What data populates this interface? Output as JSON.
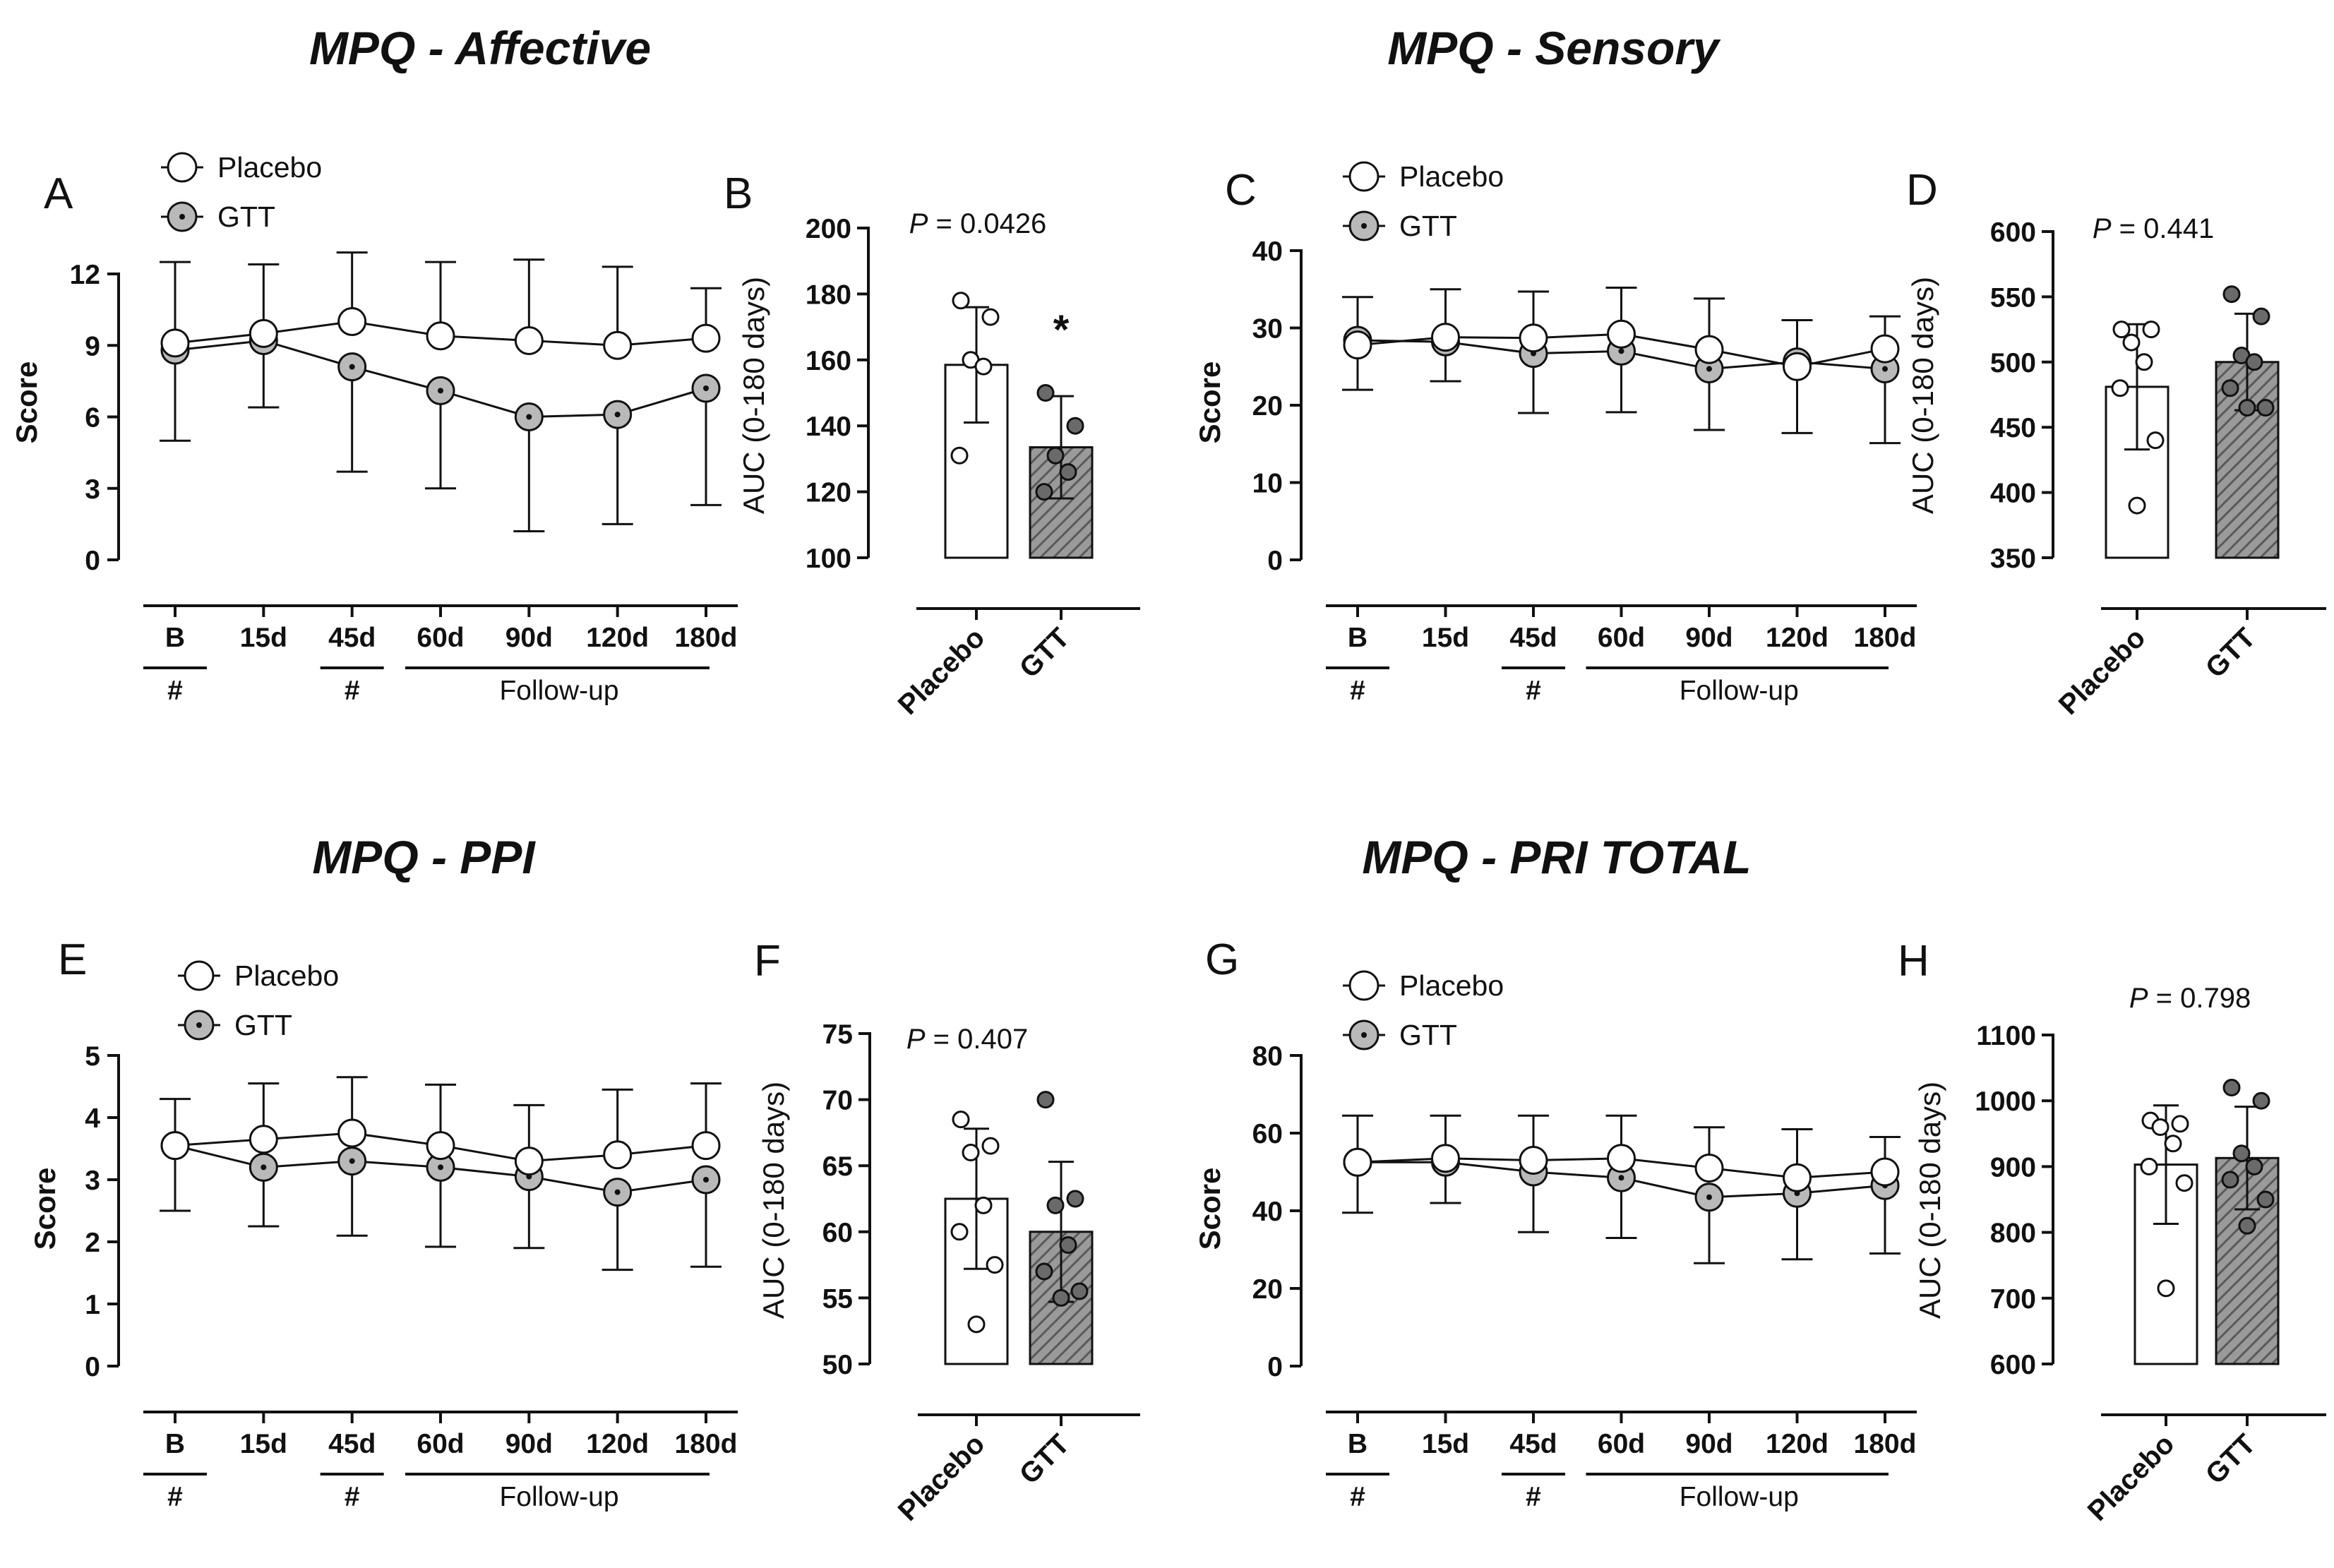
{
  "panel_titles": {
    "affective": "MPQ - Affective",
    "sensory": "MPQ - Sensory",
    "ppi": "MPQ - PPI",
    "pri_total": "MPQ - PRI TOTAL"
  },
  "colors": {
    "placebo_fill": "#ffffff",
    "gtt_fill": "#b9b9b9",
    "gtt_point_dark": "#6a6a6a",
    "hatch": "#6e6e6e",
    "stroke": "#111111"
  },
  "chart_data": [
    {
      "id": "A",
      "letter": "A",
      "type": "line",
      "group": "affective",
      "ylabel": "Score",
      "ylim": [
        0,
        12
      ],
      "yticks": [
        "0",
        "3",
        "6",
        "9",
        "12"
      ],
      "x": [
        "B",
        "15d",
        "45d",
        "60d",
        "90d",
        "120d",
        "180d"
      ],
      "legend": [
        "Placebo",
        "GTT"
      ],
      "annotations": {
        "hash_1": "#",
        "hash_2": "#",
        "follow_up": "Follow-up"
      },
      "series": [
        {
          "name": "Placebo",
          "values": [
            9.1,
            9.5,
            10.0,
            9.4,
            9.2,
            9.0,
            9.3
          ],
          "sd": [
            3.4,
            2.9,
            2.9,
            3.1,
            3.4,
            3.3,
            2.1
          ]
        },
        {
          "name": "GTT",
          "values": [
            8.8,
            9.2,
            8.1,
            7.1,
            6.0,
            6.1,
            7.2
          ],
          "sd": [
            3.8,
            2.8,
            4.4,
            4.1,
            4.8,
            4.6,
            4.9
          ]
        }
      ]
    },
    {
      "id": "B",
      "letter": "B",
      "type": "bar",
      "group": "affective",
      "ylabel": "AUC (0-180 days)",
      "ylim": [
        100,
        200
      ],
      "yticks": [
        "100",
        "120",
        "140",
        "160",
        "180",
        "200"
      ],
      "categories": [
        "Placebo",
        "GTT"
      ],
      "values": [
        158.5,
        133.5
      ],
      "sd": [
        17.5,
        15.5
      ],
      "points": [
        [
          178,
          173,
          160,
          158,
          131
        ],
        [
          150,
          140,
          131,
          126,
          120
        ]
      ],
      "p_label": "P",
      "p_value": "= 0.0426",
      "significance": "*"
    },
    {
      "id": "C",
      "letter": "C",
      "type": "line",
      "group": "sensory",
      "ylabel": "Score",
      "ylim": [
        0,
        40
      ],
      "yticks": [
        "0",
        "10",
        "20",
        "30",
        "40"
      ],
      "x": [
        "B",
        "15d",
        "45d",
        "60d",
        "90d",
        "120d",
        "180d"
      ],
      "legend": [
        "Placebo",
        "GTT"
      ],
      "annotations": {
        "hash_1": "#",
        "hash_2": "#",
        "follow_up": "Follow-up"
      },
      "series": [
        {
          "name": "Placebo",
          "values": [
            27.8,
            28.8,
            28.7,
            29.2,
            27.2,
            25.0,
            27.3
          ],
          "sd": [
            6.2,
            6.2,
            6.0,
            6.0,
            6.6,
            6.0,
            4.2
          ]
        },
        {
          "name": "GTT",
          "values": [
            28.4,
            28.2,
            26.7,
            27.0,
            24.7,
            25.6,
            24.7
          ],
          "sd": [
            6.4,
            5.1,
            7.7,
            7.9,
            7.9,
            9.2,
            9.6
          ]
        }
      ]
    },
    {
      "id": "D",
      "letter": "D",
      "type": "bar",
      "group": "sensory",
      "ylabel": "AUC (0-180 days)",
      "ylim": [
        350,
        600
      ],
      "yticks": [
        "350",
        "400",
        "450",
        "500",
        "550",
        "600"
      ],
      "categories": [
        "Placebo",
        "GTT"
      ],
      "values": [
        481,
        500
      ],
      "sd": [
        48,
        37
      ],
      "points": [
        [
          525,
          525,
          515,
          500,
          480,
          440,
          390
        ],
        [
          552,
          535,
          505,
          500,
          480,
          465,
          465
        ]
      ],
      "p_label": "P",
      "p_value": "= 0.441"
    },
    {
      "id": "E",
      "letter": "E",
      "type": "line",
      "group": "ppi",
      "ylabel": "Score",
      "ylim": [
        0,
        5
      ],
      "yticks": [
        "0",
        "1",
        "2",
        "3",
        "4",
        "5"
      ],
      "x": [
        "B",
        "15d",
        "45d",
        "60d",
        "90d",
        "120d",
        "180d"
      ],
      "legend": [
        "Placebo",
        "GTT"
      ],
      "annotations": {
        "hash_1": "#",
        "hash_2": "#",
        "follow_up": "Follow-up"
      },
      "series": [
        {
          "name": "Placebo",
          "values": [
            3.55,
            3.65,
            3.75,
            3.55,
            3.3,
            3.4,
            3.55
          ],
          "sd": [
            0.75,
            0.9,
            0.9,
            0.98,
            0.9,
            1.05,
            1.0
          ]
        },
        {
          "name": "GTT",
          "values": [
            3.55,
            3.2,
            3.3,
            3.2,
            3.05,
            2.8,
            3.0
          ],
          "sd": [
            1.05,
            0.95,
            1.2,
            1.28,
            1.15,
            1.25,
            1.4
          ]
        }
      ]
    },
    {
      "id": "F",
      "letter": "F",
      "type": "bar",
      "group": "ppi",
      "ylabel": "AUC (0-180 days)",
      "ylim": [
        50,
        75
      ],
      "yticks": [
        "50",
        "55",
        "60",
        "65",
        "70",
        "75"
      ],
      "categories": [
        "Placebo",
        "GTT"
      ],
      "values": [
        62.5,
        60.0
      ],
      "sd": [
        5.3,
        5.3
      ],
      "points": [
        [
          68.5,
          66.5,
          66.0,
          62.0,
          60.0,
          57.5,
          53.0
        ],
        [
          70.0,
          62.5,
          62.0,
          59.0,
          57.0,
          55.5,
          55.0
        ]
      ],
      "p_label": "P",
      "p_value": "= 0.407"
    },
    {
      "id": "G",
      "letter": "G",
      "type": "line",
      "group": "pri_total",
      "ylabel": "Score",
      "ylim": [
        0,
        80
      ],
      "yticks": [
        "0",
        "20",
        "40",
        "60",
        "80"
      ],
      "x": [
        "B",
        "15d",
        "45d",
        "60d",
        "90d",
        "120d",
        "180d"
      ],
      "legend": [
        "Placebo",
        "GTT"
      ],
      "annotations": {
        "hash_1": "#",
        "hash_2": "#",
        "follow_up": "Follow-up"
      },
      "series": [
        {
          "name": "Placebo",
          "values": [
            52.5,
            53.5,
            53.0,
            53.5,
            51.0,
            48.5,
            50.0
          ],
          "sd": [
            12.0,
            11.0,
            11.5,
            11.0,
            10.5,
            12.5,
            9.0
          ]
        },
        {
          "name": "GTT",
          "values": [
            52.5,
            52.5,
            50.0,
            48.5,
            43.5,
            44.5,
            46.5
          ],
          "sd": [
            13.0,
            10.5,
            15.5,
            15.5,
            17.0,
            17.0,
            17.5
          ]
        }
      ]
    },
    {
      "id": "H",
      "letter": "H",
      "type": "bar",
      "group": "pri_total",
      "ylabel": "AUC (0-180 days)",
      "ylim": [
        600,
        1100
      ],
      "yticks": [
        "600",
        "700",
        "800",
        "900",
        "1000",
        "1100"
      ],
      "categories": [
        "Placebo",
        "GTT"
      ],
      "values": [
        903,
        913
      ],
      "sd": [
        90,
        78
      ],
      "points": [
        [
          970,
          965,
          960,
          935,
          900,
          875,
          715
        ],
        [
          1020,
          1000,
          920,
          900,
          880,
          850,
          810
        ]
      ],
      "p_label": "P",
      "p_value": "= 0.798"
    }
  ]
}
